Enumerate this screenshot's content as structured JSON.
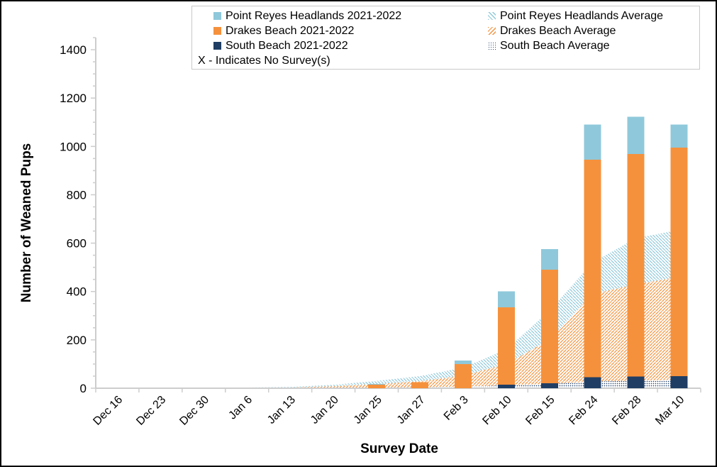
{
  "legend": {
    "items": [
      {
        "label": "Point Reyes Headlands 2021-2022",
        "swatch": "solid",
        "color": "#8FC8DB"
      },
      {
        "label": "Point Reyes Headlands Average",
        "swatch": "diagonal-back",
        "color": "#8FC8DB"
      },
      {
        "label": "Drakes Beach 2021-2022",
        "swatch": "solid",
        "color": "#F5913C"
      },
      {
        "label": "Drakes Beach Average",
        "swatch": "diagonal-forward",
        "color": "#F5913C"
      },
      {
        "label": "South Beach 2021-2022",
        "swatch": "solid",
        "color": "#203E64"
      },
      {
        "label": "South Beach Average",
        "swatch": "dots",
        "color": "#203E64"
      }
    ],
    "note": "X - Indicates No Survey(s)"
  },
  "chart_data": {
    "type": "bar",
    "title": "",
    "xlabel": "Survey Date",
    "ylabel": "Number of Weaned Pups",
    "ylim": [
      0,
      1400
    ],
    "y_major_step": 200,
    "y_minor_step": 50,
    "grid": false,
    "legend_position": "top",
    "axis_color": "#CDCDCD",
    "text_color": "#000000",
    "categories": [
      "Dec 16",
      "Dec 23",
      "Dec 30",
      "Jan 6",
      "Jan 13",
      "Jan 20",
      "Jan 25",
      "Jan 27",
      "Feb 3",
      "Feb 10",
      "Feb 15",
      "Feb 24",
      "Feb 28",
      "Mar 10"
    ],
    "series": [
      {
        "name": "South Beach 2021-2022",
        "type": "bar",
        "color": "#203E64",
        "values": [
          0,
          0,
          0,
          0,
          0,
          0,
          0,
          0,
          0,
          15,
          20,
          45,
          48,
          50
        ]
      },
      {
        "name": "Drakes Beach 2021-2022",
        "type": "bar",
        "color": "#F5913C",
        "values": [
          0,
          0,
          0,
          0,
          0,
          0,
          14,
          25,
          100,
          320,
          470,
          900,
          920,
          945
        ]
      },
      {
        "name": "Point Reyes Headlands 2021-2022",
        "type": "bar",
        "color": "#8FC8DB",
        "values": [
          0,
          0,
          0,
          0,
          0,
          0,
          4,
          0,
          14,
          65,
          85,
          145,
          155,
          95
        ]
      },
      {
        "name": "South Beach Average",
        "type": "area",
        "pattern": "dots",
        "color": "#203E64",
        "values": [
          0,
          0,
          1,
          1,
          1,
          2,
          3,
          4,
          7,
          12,
          18,
          27,
          32,
          35
        ]
      },
      {
        "name": "Drakes Beach Average",
        "type": "area",
        "pattern": "diagonal-forward",
        "color": "#F5913C",
        "values": [
          1,
          1,
          1,
          1,
          2,
          6,
          14,
          25,
          45,
          88,
          182,
          363,
          398,
          425
        ]
      },
      {
        "name": "Point Reyes Headlands Average",
        "type": "area",
        "pattern": "diagonal-back",
        "color": "#8FC8DB",
        "values": [
          0,
          0,
          1,
          1,
          2,
          6,
          13,
          21,
          33,
          60,
          120,
          130,
          190,
          195
        ]
      }
    ],
    "annotation_note": "X - Indicates No Survey(s)"
  }
}
